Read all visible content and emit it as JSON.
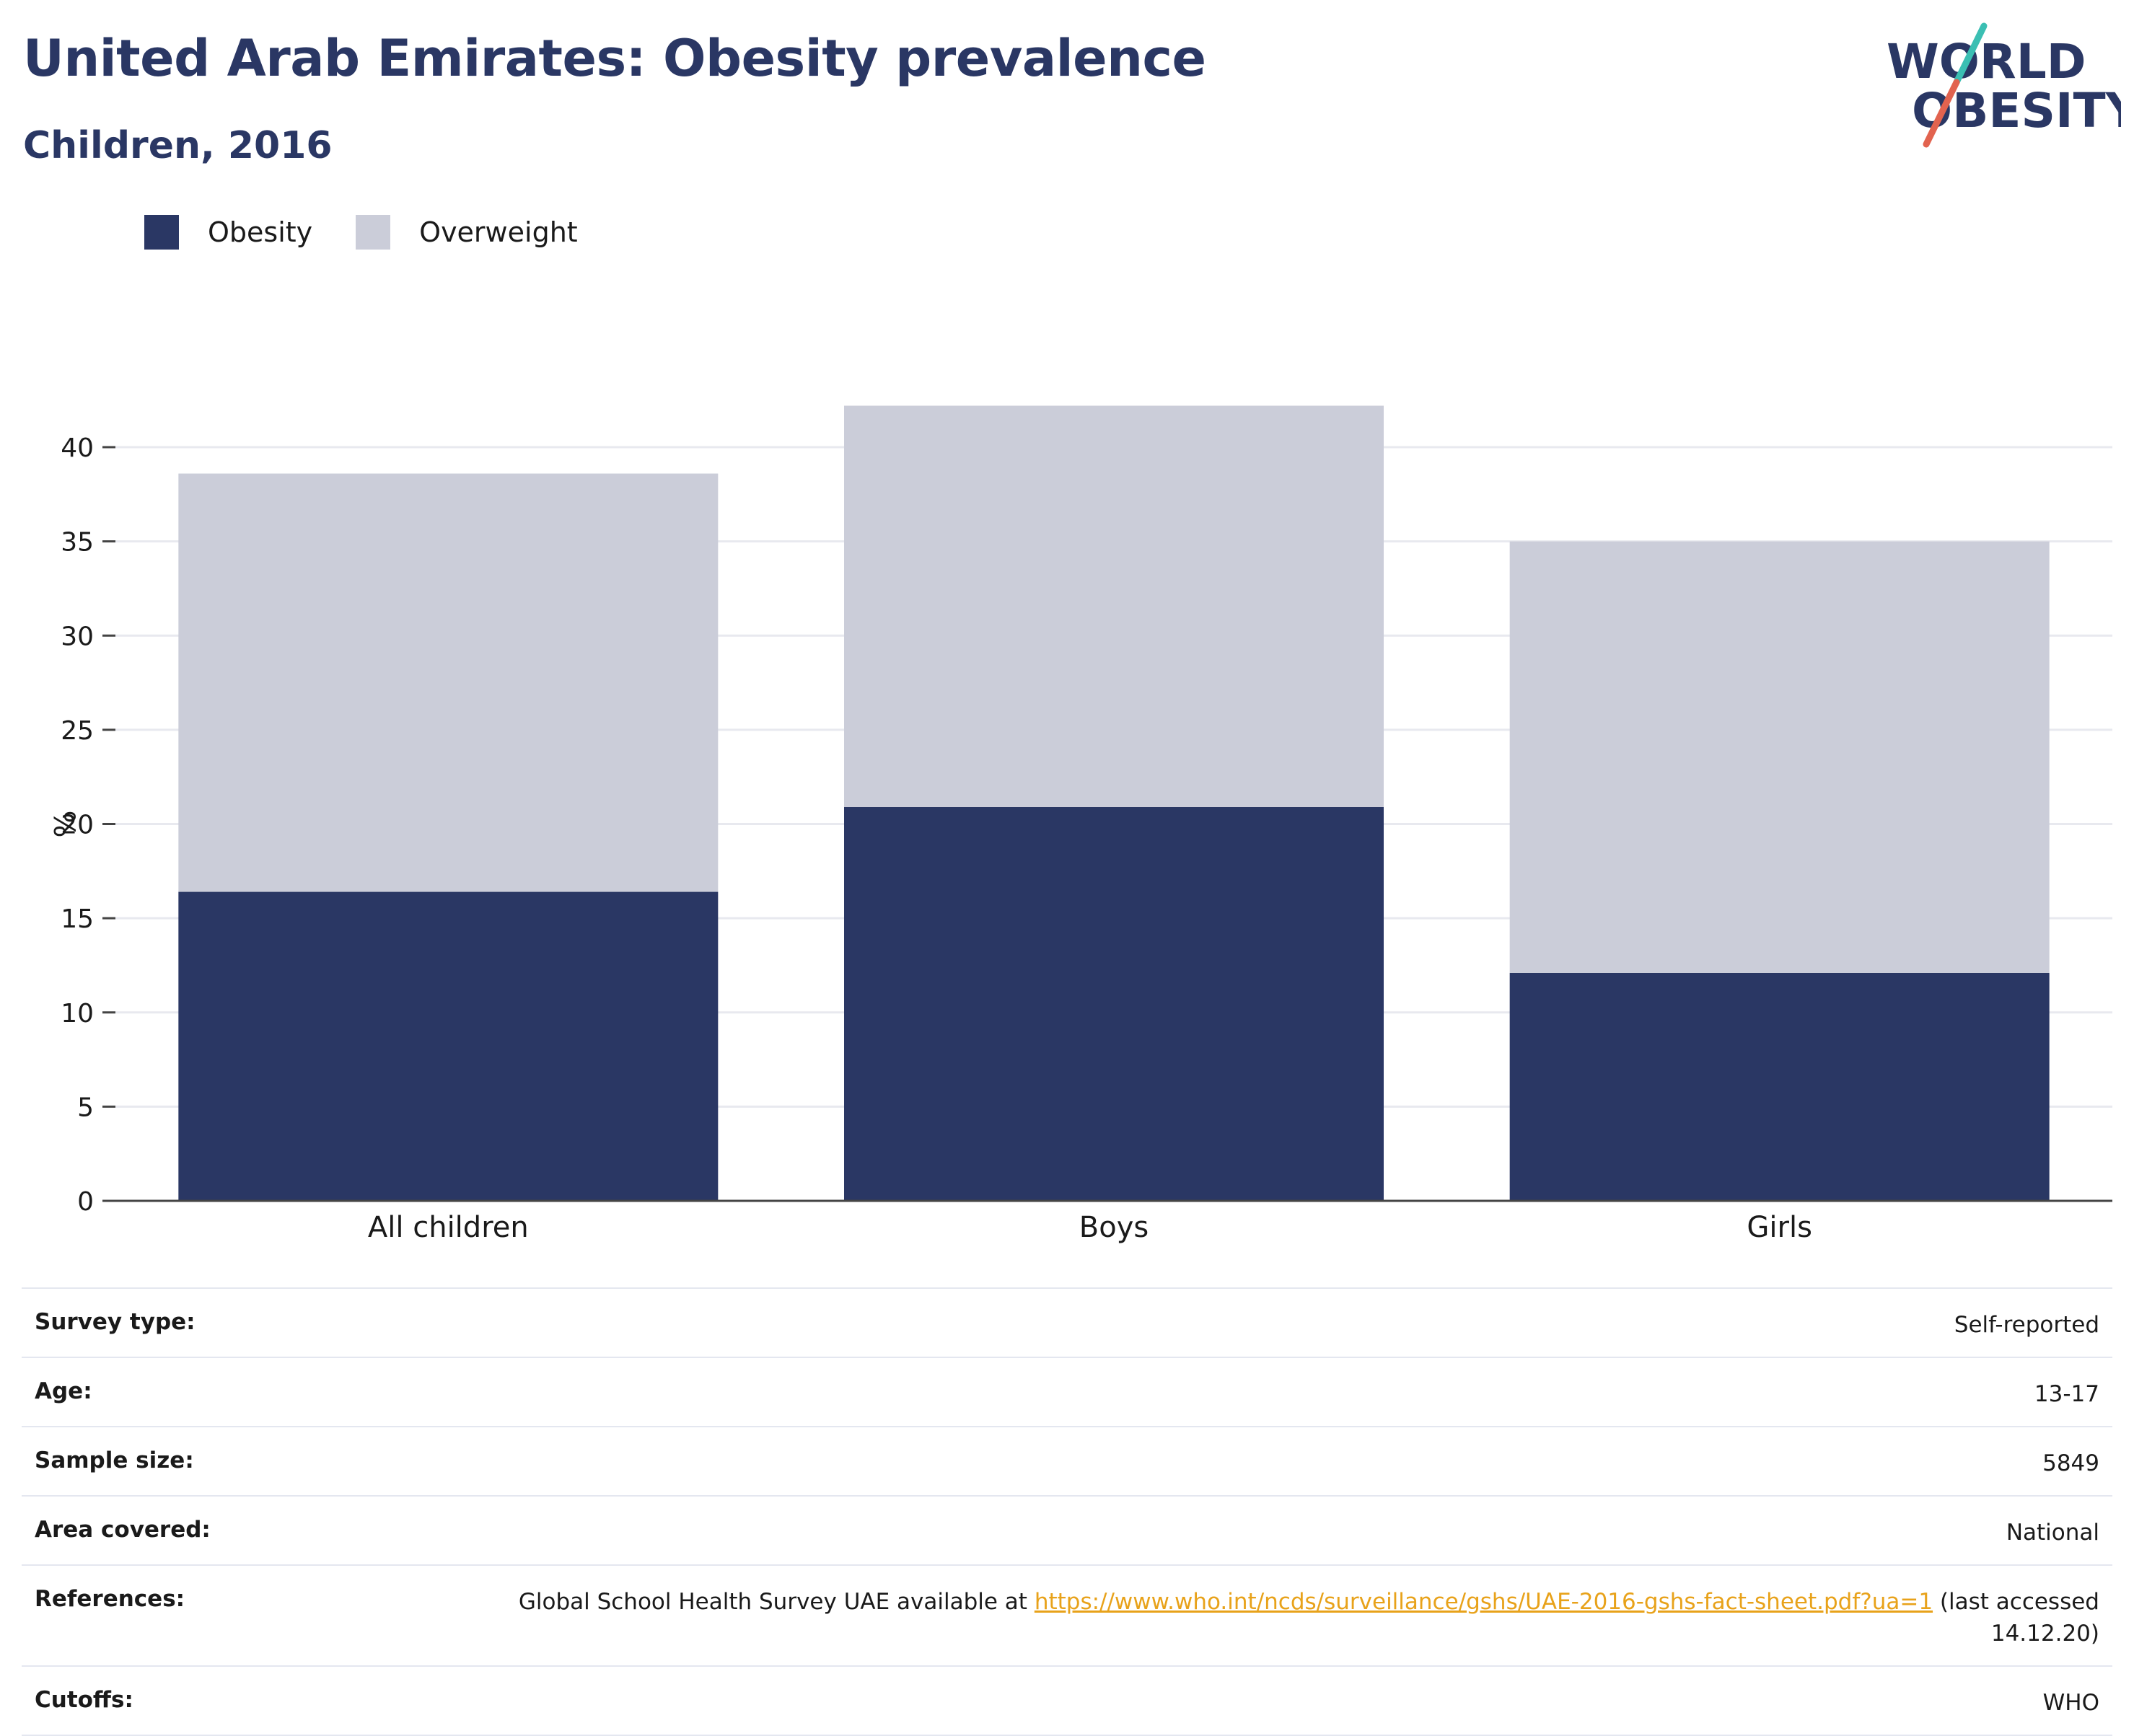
{
  "header": {
    "title": "United Arab Emirates: Obesity prevalence",
    "subtitle": "Children, 2016"
  },
  "logo": {
    "line1": "WORLD",
    "line2": "OBESITY"
  },
  "colors": {
    "obesity": "#2a3764",
    "overweight": "#cbcdd9",
    "accent_teal": "#3bbfb3",
    "accent_red": "#e2634f",
    "link": "#e8a21a"
  },
  "chart_data": {
    "type": "bar",
    "stacked": true,
    "categories": [
      "All children",
      "Boys",
      "Girls"
    ],
    "series": [
      {
        "name": "Obesity",
        "values": [
          16.4,
          20.9,
          12.1
        ]
      },
      {
        "name": "Overweight",
        "values": [
          22.2,
          21.3,
          22.9
        ]
      }
    ],
    "ylabel": "%",
    "ylim": [
      0,
      42.5
    ],
    "yticks": [
      0,
      5,
      10,
      15,
      20,
      25,
      30,
      35,
      40
    ],
    "grid": true,
    "legend_position": "top-left"
  },
  "info": {
    "rows": [
      {
        "label": "Survey type:",
        "value": "Self-reported"
      },
      {
        "label": "Age:",
        "value": "13-17"
      },
      {
        "label": "Sample size:",
        "value": "5849"
      },
      {
        "label": "Area covered:",
        "value": "National"
      },
      {
        "label": "References:",
        "value_prefix": "Global School Health Survey UAE available at ",
        "link": "https://www.who.int/ncds/surveillance/gshs/UAE-2016-gshs-fact-sheet.pdf?ua=1",
        "value_suffix": " (last accessed 14.12.20)"
      },
      {
        "label": "Cutoffs:",
        "value": "WHO"
      }
    ]
  }
}
